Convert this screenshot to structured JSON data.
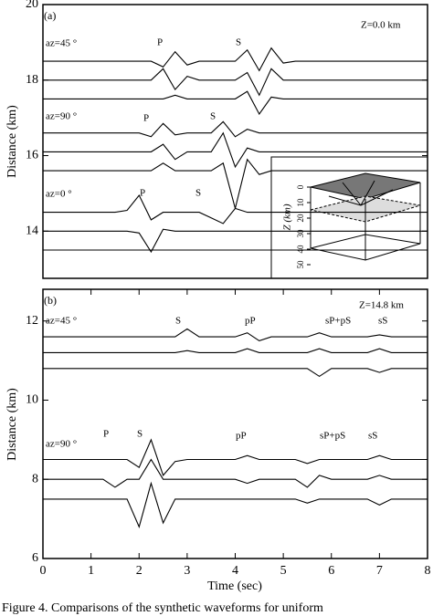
{
  "chart_data": [
    {
      "type": "line",
      "title": "(a)",
      "ylabel": "Distance (km)",
      "annotations": [
        "Z=0.0 km",
        "az=45 °",
        "P",
        "S",
        "az=90 °",
        "P",
        "S",
        "az=0 °",
        "P",
        "S"
      ],
      "xlim": [
        0,
        8
      ],
      "ylim": [
        12.75,
        20
      ],
      "yticks": [
        14,
        16,
        18,
        20
      ],
      "x": [
        0,
        0.25,
        0.5,
        0.75,
        1,
        1.25,
        1.5,
        1.75,
        2,
        2.25,
        2.5,
        2.75,
        3,
        3.25,
        3.5,
        3.75,
        4,
        4.25,
        4.5,
        4.75,
        5,
        5.25,
        5.5,
        5.75,
        6,
        6.25,
        6.5,
        6.75,
        7,
        7.25,
        7.5,
        7.75,
        8
      ],
      "series": [
        {
          "color": "#000000",
          "values": [
            18.5,
            18.5,
            18.5,
            18.5,
            18.5,
            18.5,
            18.5,
            18.5,
            18.5,
            18.5,
            18.35,
            18.75,
            18.4,
            18.5,
            18.5,
            18.5,
            18.5,
            18.8,
            18.25,
            18.85,
            18.45,
            18.5,
            18.5,
            18.5,
            18.5,
            18.5,
            18.5,
            18.5,
            18.5,
            18.5,
            18.5,
            18.5,
            18.5
          ]
        },
        {
          "color": "#000000",
          "values": [
            18,
            18,
            18,
            18,
            18,
            18,
            18,
            18,
            18,
            18,
            18.3,
            17.75,
            18.1,
            18,
            18,
            18,
            18,
            18.2,
            17.6,
            18.3,
            18,
            18,
            18,
            18,
            18,
            18,
            18,
            18,
            18,
            18,
            18,
            18,
            18
          ]
        },
        {
          "color": "#000000",
          "values": [
            17.5,
            17.5,
            17.5,
            17.5,
            17.5,
            17.5,
            17.5,
            17.5,
            17.5,
            17.5,
            17.5,
            17.6,
            17.5,
            17.5,
            17.5,
            17.5,
            17.5,
            17.7,
            17.1,
            17.55,
            17.5,
            17.5,
            17.5,
            17.5,
            17.5,
            17.5,
            17.5,
            17.5,
            17.5,
            17.5,
            17.5,
            17.5,
            17.5
          ]
        },
        {
          "color": "#000000",
          "values": [
            16.6,
            16.6,
            16.6,
            16.6,
            16.6,
            16.6,
            16.6,
            16.6,
            16.6,
            16.5,
            16.85,
            16.55,
            16.6,
            16.6,
            16.6,
            16.9,
            16.5,
            16.7,
            16.6,
            16.6,
            16.6,
            16.6,
            16.6,
            16.6,
            16.6,
            16.6,
            16.6,
            16.6,
            16.6,
            16.6,
            16.6,
            16.6,
            16.6
          ]
        },
        {
          "color": "#000000",
          "values": [
            16.1,
            16.1,
            16.1,
            16.1,
            16.1,
            16.1,
            16.1,
            16.1,
            16.1,
            16.1,
            16.3,
            15.9,
            16.1,
            16.1,
            16.1,
            16.6,
            15.7,
            16.2,
            16.1,
            16.1,
            16.1,
            16.1,
            16.1,
            16.1,
            16.1,
            16.1,
            16.1,
            16.1,
            16.1,
            16.1,
            16.1,
            16.1,
            16.1
          ]
        },
        {
          "color": "#000000",
          "values": [
            15.6,
            15.6,
            15.6,
            15.6,
            15.6,
            15.6,
            15.6,
            15.6,
            15.6,
            15.6,
            15.8,
            15.6,
            15.6,
            15.6,
            15.6,
            15.8,
            14.6,
            15.9,
            15.5,
            15.6,
            15.6,
            15.6,
            15.6,
            15.6,
            15.6,
            15.6,
            15.6,
            15.6,
            15.6,
            15.6,
            15.6,
            15.6,
            15.6
          ]
        },
        {
          "color": "#000000",
          "values": [
            14.5,
            14.5,
            14.5,
            14.5,
            14.5,
            14.5,
            14.5,
            14.55,
            14.95,
            14.3,
            14.5,
            14.5,
            14.5,
            14.5,
            14.35,
            14.2,
            14.6,
            14.5,
            14.5,
            14.5,
            14.5,
            14.5,
            14.5,
            14.5,
            14.5,
            14.5,
            14.5,
            14.5,
            14.5,
            14.5,
            14.5,
            14.5,
            14.5
          ]
        },
        {
          "color": "#000000",
          "values": [
            14,
            14,
            14,
            14,
            14,
            14,
            14,
            14,
            13.95,
            13.45,
            14.05,
            14,
            14,
            14,
            14,
            14,
            14,
            14,
            14,
            14,
            14,
            14,
            14,
            14,
            14,
            14,
            14,
            14,
            14,
            14,
            14,
            14,
            14
          ]
        },
        {
          "color": "#000000",
          "values": [
            13.5,
            13.5,
            13.5,
            13.5,
            13.5,
            13.5,
            13.5,
            13.5,
            13.5,
            13.5,
            13.5,
            13.5,
            13.5,
            13.5,
            13.5,
            13.5,
            13.5,
            13.5,
            13.5,
            13.5,
            13.5,
            13.5,
            13.5,
            13.5,
            13.5,
            13.5,
            13.5,
            13.5,
            13.5,
            13.5,
            13.5,
            13.5,
            13.5
          ]
        }
      ],
      "inset": {
        "zlabel": "Z (km)",
        "zticks": [
          0,
          10,
          20,
          30,
          40,
          50
        ]
      }
    },
    {
      "type": "line",
      "title": "(b)",
      "xlabel": "Time (sec)",
      "ylabel": "Distance (km)",
      "annotations": [
        "Z=14.8 km",
        "az=45 °",
        "S",
        "pP",
        "sP+pS",
        "sS",
        "az=90 °",
        "P",
        "S",
        "pP",
        "sP+pS",
        "sS"
      ],
      "xlim": [
        0,
        8
      ],
      "ylim": [
        6,
        12.8
      ],
      "xticks": [
        0,
        1,
        2,
        3,
        4,
        5,
        6,
        7,
        8
      ],
      "yticks": [
        6,
        8,
        10,
        12
      ],
      "x": [
        0,
        0.25,
        0.5,
        0.75,
        1,
        1.25,
        1.5,
        1.75,
        2,
        2.25,
        2.5,
        2.75,
        3,
        3.25,
        3.5,
        3.75,
        4,
        4.25,
        4.5,
        4.75,
        5,
        5.25,
        5.5,
        5.75,
        6,
        6.25,
        6.5,
        6.75,
        7,
        7.25,
        7.5,
        7.75,
        8
      ],
      "series": [
        {
          "color": "#000000",
          "values": [
            11.6,
            11.6,
            11.6,
            11.6,
            11.6,
            11.6,
            11.6,
            11.6,
            11.6,
            11.6,
            11.6,
            11.6,
            11.8,
            11.6,
            11.6,
            11.6,
            11.6,
            11.7,
            11.5,
            11.6,
            11.6,
            11.6,
            11.6,
            11.7,
            11.6,
            11.6,
            11.6,
            11.6,
            11.65,
            11.6,
            11.6,
            11.6,
            11.6
          ]
        },
        {
          "color": "#000000",
          "values": [
            11.2,
            11.2,
            11.2,
            11.2,
            11.2,
            11.2,
            11.2,
            11.2,
            11.2,
            11.2,
            11.2,
            11.2,
            11.25,
            11.2,
            11.2,
            11.2,
            11.2,
            11.3,
            11.2,
            11.2,
            11.2,
            11.2,
            11.2,
            11.3,
            11.2,
            11.2,
            11.2,
            11.2,
            11.3,
            11.2,
            11.2,
            11.2,
            11.2
          ]
        },
        {
          "color": "#000000",
          "values": [
            10.8,
            10.8,
            10.8,
            10.8,
            10.8,
            10.8,
            10.8,
            10.8,
            10.8,
            10.8,
            10.8,
            10.8,
            10.8,
            10.8,
            10.8,
            10.8,
            10.8,
            10.8,
            10.8,
            10.8,
            10.8,
            10.8,
            10.8,
            10.6,
            10.8,
            10.8,
            10.8,
            10.8,
            10.7,
            10.8,
            10.8,
            10.8,
            10.8
          ]
        },
        {
          "color": "#000000",
          "values": [
            8.5,
            8.5,
            8.5,
            8.5,
            8.5,
            8.5,
            8.5,
            8.5,
            8.3,
            9.0,
            8.1,
            8.45,
            8.5,
            8.5,
            8.5,
            8.5,
            8.5,
            8.6,
            8.5,
            8.5,
            8.5,
            8.5,
            8.4,
            8.5,
            8.5,
            8.5,
            8.5,
            8.5,
            8.6,
            8.5,
            8.5,
            8.5,
            8.5
          ]
        },
        {
          "color": "#000000",
          "values": [
            8,
            8,
            8,
            8,
            8,
            8,
            7.8,
            8,
            8,
            8.5,
            8,
            8,
            8,
            8,
            8,
            8,
            8,
            7.9,
            8,
            8,
            8,
            8,
            7.8,
            8.1,
            8,
            8,
            8,
            8,
            8.1,
            8,
            8,
            8,
            8
          ]
        },
        {
          "color": "#000000",
          "values": [
            7.5,
            7.5,
            7.5,
            7.5,
            7.5,
            7.5,
            7.5,
            7.5,
            6.8,
            7.9,
            6.9,
            7.5,
            7.5,
            7.5,
            7.5,
            7.5,
            7.5,
            7.5,
            7.5,
            7.5,
            7.5,
            7.5,
            7.4,
            7.5,
            7.5,
            7.5,
            7.5,
            7.5,
            7.35,
            7.5,
            7.5,
            7.5,
            7.5
          ]
        }
      ]
    }
  ],
  "caption": "Figure 4. Comparisons of the synthetic waveforms for uniform"
}
